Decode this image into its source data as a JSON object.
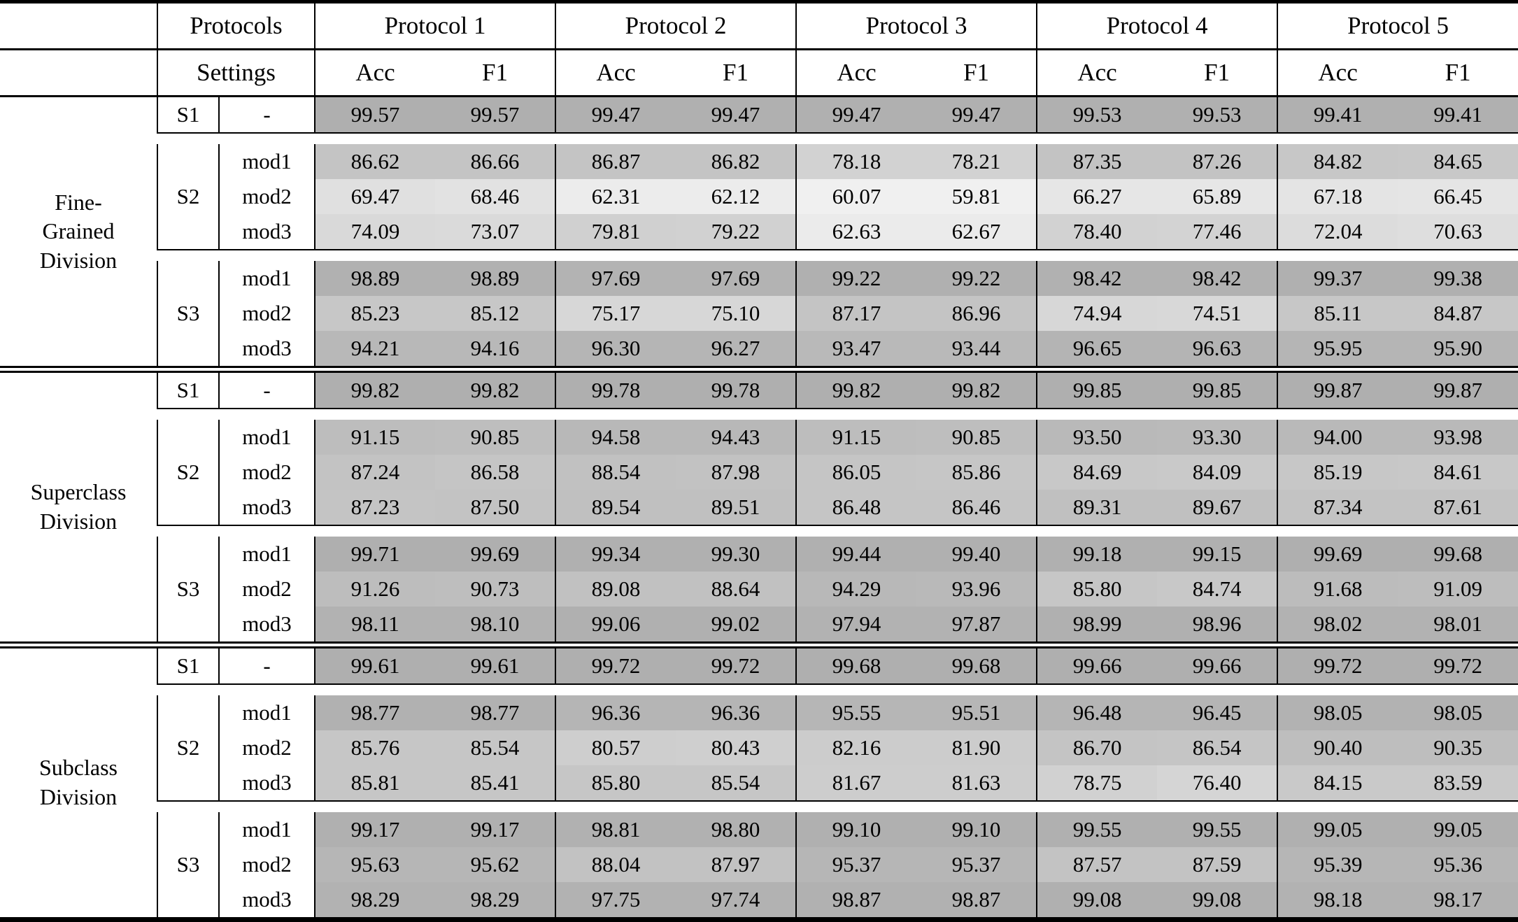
{
  "table": {
    "header": {
      "protocols_label": "Protocols",
      "settings_label": "Settings",
      "protocol_columns": [
        "Protocol 1",
        "Protocol 2",
        "Protocol 3",
        "Protocol 4",
        "Protocol 5"
      ],
      "metric_labels": [
        "Acc",
        "F1"
      ]
    },
    "colors": {
      "background": "#ffffff",
      "text": "#000000",
      "rule": "#000000"
    },
    "heatmap": {
      "min_value": 59.81,
      "max_value": 99.87,
      "light_color": "#f0f0f0",
      "dark_color": "#afafaf"
    },
    "divisions": [
      {
        "label_lines": [
          "Fine-",
          "Grained",
          "Division"
        ],
        "groups": [
          {
            "setting": "S1",
            "rows": [
              {
                "mod": "-",
                "values": [
                  "99.57",
                  "99.57",
                  "99.47",
                  "99.47",
                  "99.47",
                  "99.47",
                  "99.53",
                  "99.53",
                  "99.41",
                  "99.41"
                ]
              }
            ]
          },
          {
            "setting": "S2",
            "rows": [
              {
                "mod": "mod1",
                "values": [
                  "86.62",
                  "86.66",
                  "86.87",
                  "86.82",
                  "78.18",
                  "78.21",
                  "87.35",
                  "87.26",
                  "84.82",
                  "84.65"
                ]
              },
              {
                "mod": "mod2",
                "values": [
                  "69.47",
                  "68.46",
                  "62.31",
                  "62.12",
                  "60.07",
                  "59.81",
                  "66.27",
                  "65.89",
                  "67.18",
                  "66.45"
                ]
              },
              {
                "mod": "mod3",
                "values": [
                  "74.09",
                  "73.07",
                  "79.81",
                  "79.22",
                  "62.63",
                  "62.67",
                  "78.40",
                  "77.46",
                  "72.04",
                  "70.63"
                ]
              }
            ]
          },
          {
            "setting": "S3",
            "rows": [
              {
                "mod": "mod1",
                "values": [
                  "98.89",
                  "98.89",
                  "97.69",
                  "97.69",
                  "99.22",
                  "99.22",
                  "98.42",
                  "98.42",
                  "99.37",
                  "99.38"
                ]
              },
              {
                "mod": "mod2",
                "values": [
                  "85.23",
                  "85.12",
                  "75.17",
                  "75.10",
                  "87.17",
                  "86.96",
                  "74.94",
                  "74.51",
                  "85.11",
                  "84.87"
                ]
              },
              {
                "mod": "mod3",
                "values": [
                  "94.21",
                  "94.16",
                  "96.30",
                  "96.27",
                  "93.47",
                  "93.44",
                  "96.65",
                  "96.63",
                  "95.95",
                  "95.90"
                ]
              }
            ]
          }
        ]
      },
      {
        "label_lines": [
          "Superclass",
          "Division"
        ],
        "groups": [
          {
            "setting": "S1",
            "rows": [
              {
                "mod": "-",
                "values": [
                  "99.82",
                  "99.82",
                  "99.78",
                  "99.78",
                  "99.82",
                  "99.82",
                  "99.85",
                  "99.85",
                  "99.87",
                  "99.87"
                ]
              }
            ]
          },
          {
            "setting": "S2",
            "rows": [
              {
                "mod": "mod1",
                "values": [
                  "91.15",
                  "90.85",
                  "94.58",
                  "94.43",
                  "91.15",
                  "90.85",
                  "93.50",
                  "93.30",
                  "94.00",
                  "93.98"
                ]
              },
              {
                "mod": "mod2",
                "values": [
                  "87.24",
                  "86.58",
                  "88.54",
                  "87.98",
                  "86.05",
                  "85.86",
                  "84.69",
                  "84.09",
                  "85.19",
                  "84.61"
                ]
              },
              {
                "mod": "mod3",
                "values": [
                  "87.23",
                  "87.50",
                  "89.54",
                  "89.51",
                  "86.48",
                  "86.46",
                  "89.31",
                  "89.67",
                  "87.34",
                  "87.61"
                ]
              }
            ]
          },
          {
            "setting": "S3",
            "rows": [
              {
                "mod": "mod1",
                "values": [
                  "99.71",
                  "99.69",
                  "99.34",
                  "99.30",
                  "99.44",
                  "99.40",
                  "99.18",
                  "99.15",
                  "99.69",
                  "99.68"
                ]
              },
              {
                "mod": "mod2",
                "values": [
                  "91.26",
                  "90.73",
                  "89.08",
                  "88.64",
                  "94.29",
                  "93.96",
                  "85.80",
                  "84.74",
                  "91.68",
                  "91.09"
                ]
              },
              {
                "mod": "mod3",
                "values": [
                  "98.11",
                  "98.10",
                  "99.06",
                  "99.02",
                  "97.94",
                  "97.87",
                  "98.99",
                  "98.96",
                  "98.02",
                  "98.01"
                ]
              }
            ]
          }
        ]
      },
      {
        "label_lines": [
          "Subclass",
          "Division"
        ],
        "groups": [
          {
            "setting": "S1",
            "rows": [
              {
                "mod": "-",
                "values": [
                  "99.61",
                  "99.61",
                  "99.72",
                  "99.72",
                  "99.68",
                  "99.68",
                  "99.66",
                  "99.66",
                  "99.72",
                  "99.72"
                ]
              }
            ]
          },
          {
            "setting": "S2",
            "rows": [
              {
                "mod": "mod1",
                "values": [
                  "98.77",
                  "98.77",
                  "96.36",
                  "96.36",
                  "95.55",
                  "95.51",
                  "96.48",
                  "96.45",
                  "98.05",
                  "98.05"
                ]
              },
              {
                "mod": "mod2",
                "values": [
                  "85.76",
                  "85.54",
                  "80.57",
                  "80.43",
                  "82.16",
                  "81.90",
                  "86.70",
                  "86.54",
                  "90.40",
                  "90.35"
                ]
              },
              {
                "mod": "mod3",
                "values": [
                  "85.81",
                  "85.41",
                  "85.80",
                  "85.54",
                  "81.67",
                  "81.63",
                  "78.75",
                  "76.40",
                  "84.15",
                  "83.59"
                ]
              }
            ]
          },
          {
            "setting": "S3",
            "rows": [
              {
                "mod": "mod1",
                "values": [
                  "99.17",
                  "99.17",
                  "98.81",
                  "98.80",
                  "99.10",
                  "99.10",
                  "99.55",
                  "99.55",
                  "99.05",
                  "99.05"
                ]
              },
              {
                "mod": "mod2",
                "values": [
                  "95.63",
                  "95.62",
                  "88.04",
                  "87.97",
                  "95.37",
                  "95.37",
                  "87.57",
                  "87.59",
                  "95.39",
                  "95.36"
                ]
              },
              {
                "mod": "mod3",
                "values": [
                  "98.29",
                  "98.29",
                  "97.75",
                  "97.74",
                  "98.87",
                  "98.87",
                  "99.08",
                  "99.08",
                  "98.18",
                  "98.17"
                ]
              }
            ]
          }
        ]
      }
    ]
  }
}
